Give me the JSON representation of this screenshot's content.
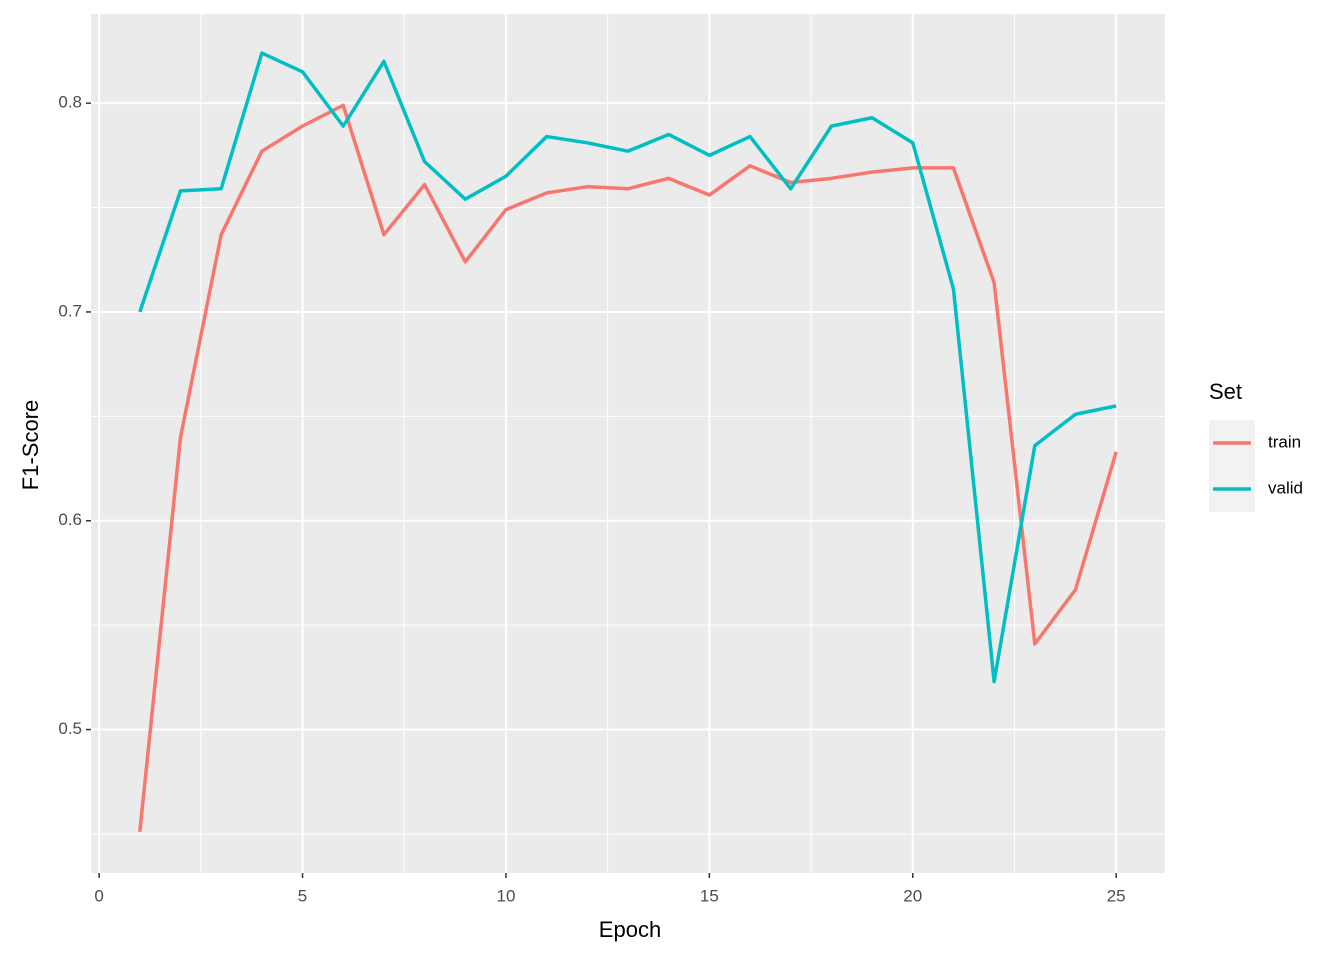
{
  "chart_data": {
    "type": "line",
    "x_label": "Epoch",
    "y_label": "F1-Score",
    "legend_title": "Set",
    "x": [
      1,
      2,
      3,
      4,
      5,
      6,
      7,
      8,
      9,
      10,
      11,
      12,
      13,
      14,
      15,
      16,
      17,
      18,
      19,
      20,
      21,
      22,
      23,
      24,
      25
    ],
    "series": [
      {
        "name": "train",
        "color": "#F8766D",
        "values": [
          0.451,
          0.64,
          0.737,
          0.777,
          0.789,
          0.799,
          0.737,
          0.761,
          0.724,
          0.749,
          0.757,
          0.76,
          0.759,
          0.764,
          0.756,
          0.77,
          0.762,
          0.764,
          0.767,
          0.769,
          0.769,
          0.714,
          0.541,
          0.567,
          0.633
        ]
      },
      {
        "name": "valid",
        "color": "#00BFC4",
        "values": [
          0.7,
          0.758,
          0.759,
          0.824,
          0.815,
          0.789,
          0.82,
          0.772,
          0.754,
          0.765,
          0.784,
          0.781,
          0.777,
          0.785,
          0.775,
          0.784,
          0.759,
          0.789,
          0.793,
          0.781,
          0.711,
          0.523,
          0.636,
          0.651,
          0.655
        ]
      }
    ],
    "xlim": [
      -0.2,
      26.2
    ],
    "ylim": [
      0.4313,
      0.8427
    ],
    "xticks": [
      0,
      5,
      10,
      15,
      20,
      25
    ],
    "yticks": [
      0.5,
      0.6,
      0.7,
      0.8
    ],
    "minor_xticks": [
      2.5,
      7.5,
      12.5,
      17.5,
      22.5
    ],
    "minor_yticks": [
      0.45,
      0.55,
      0.65,
      0.75
    ],
    "grid": true,
    "legend_position": "right"
  }
}
